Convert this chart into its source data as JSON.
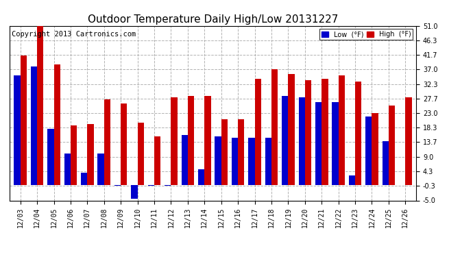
{
  "title": "Outdoor Temperature Daily High/Low 20131227",
  "copyright": "Copyright 2013 Cartronics.com",
  "dates": [
    "12/03",
    "12/04",
    "12/05",
    "12/06",
    "12/07",
    "12/08",
    "12/09",
    "12/10",
    "12/11",
    "12/12",
    "12/13",
    "12/14",
    "12/15",
    "12/16",
    "12/17",
    "12/18",
    "12/19",
    "12/20",
    "12/21",
    "12/22",
    "12/23",
    "12/24",
    "12/25",
    "12/26"
  ],
  "low": [
    35.0,
    38.0,
    18.0,
    10.0,
    4.0,
    10.0,
    -0.3,
    -4.5,
    -0.3,
    -0.3,
    16.0,
    5.0,
    15.5,
    15.0,
    15.0,
    15.0,
    28.5,
    28.0,
    26.5,
    26.5,
    3.0,
    22.0,
    14.0,
    0.0
  ],
  "high": [
    41.5,
    51.0,
    38.5,
    19.0,
    19.5,
    27.5,
    26.0,
    20.0,
    15.5,
    28.0,
    28.5,
    28.5,
    21.0,
    21.0,
    34.0,
    37.0,
    35.5,
    33.5,
    34.0,
    35.0,
    33.0,
    23.0,
    25.5,
    28.0
  ],
  "ylim": [
    -5.0,
    51.0
  ],
  "yticks": [
    -5.0,
    -0.3,
    4.3,
    9.0,
    13.7,
    18.3,
    23.0,
    27.7,
    32.3,
    37.0,
    41.7,
    46.3,
    51.0
  ],
  "low_color": "#0000cc",
  "high_color": "#cc0000",
  "bg_color": "#ffffff",
  "grid_color": "#aaaaaa",
  "title_fontsize": 11,
  "copyright_fontsize": 7.5,
  "bar_width": 0.38
}
